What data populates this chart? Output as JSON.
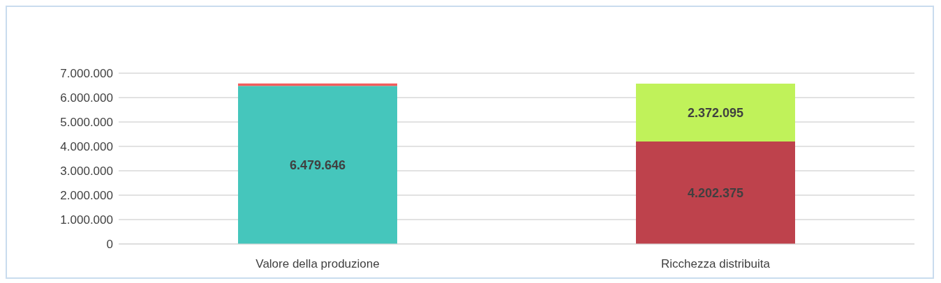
{
  "chart_data": {
    "type": "bar",
    "stacked": true,
    "categories": [
      "Valore della produzione",
      "Ricchezza distribuita"
    ],
    "series": [
      {
        "color": "#45c6bc",
        "values": [
          6479646,
          null
        ],
        "value_labels": [
          "6.479.646",
          null
        ]
      },
      {
        "color": "#f25c5c",
        "values": [
          100000,
          null
        ],
        "value_labels": [
          null,
          null
        ]
      },
      {
        "color": "#be424c",
        "values": [
          null,
          4202375
        ],
        "value_labels": [
          null,
          "4.202.375"
        ]
      },
      {
        "color": "#c0f25a",
        "values": [
          null,
          2372095
        ],
        "value_labels": [
          null,
          "2.372.095"
        ]
      }
    ],
    "ylim": [
      0,
      7000000
    ],
    "yticks": [
      {
        "value": 0,
        "label": "0"
      },
      {
        "value": 1000000,
        "label": "1.000.000"
      },
      {
        "value": 2000000,
        "label": "2.000.000"
      },
      {
        "value": 3000000,
        "label": "3.000.000"
      },
      {
        "value": 4000000,
        "label": "4.000.000"
      },
      {
        "value": 5000000,
        "label": "5.000.000"
      },
      {
        "value": 6000000,
        "label": "6.000.000"
      },
      {
        "value": 7000000,
        "label": "7.000.000"
      }
    ],
    "grid": "y",
    "legend": false
  }
}
